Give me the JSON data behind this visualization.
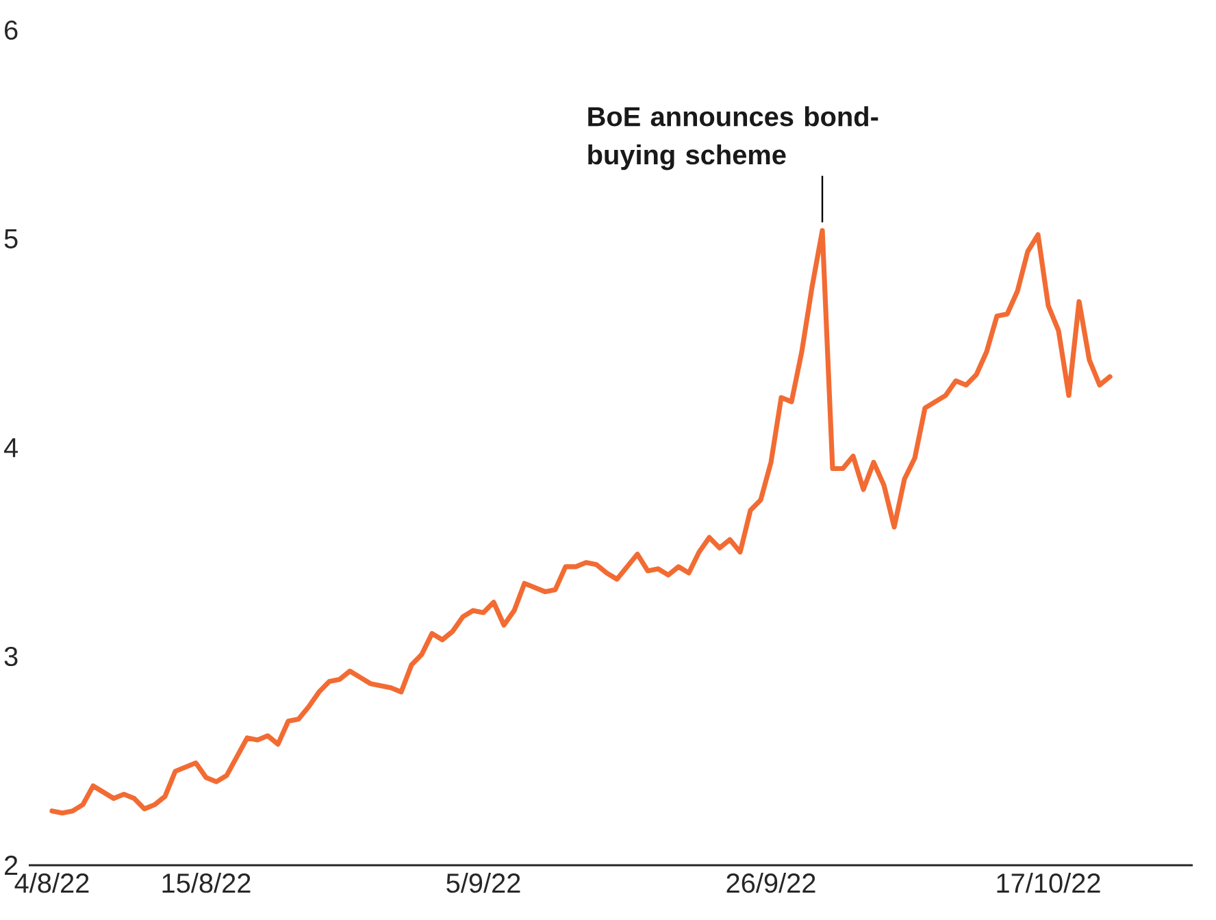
{
  "chart_data": {
    "type": "line",
    "categories": [
      "4/8/22",
      null,
      null,
      null,
      null,
      null,
      null,
      null,
      null,
      null,
      null,
      null,
      null,
      null,
      null,
      "15/8/22",
      null,
      null,
      null,
      null,
      null,
      null,
      null,
      null,
      null,
      null,
      null,
      null,
      null,
      null,
      null,
      null,
      null,
      null,
      null,
      null,
      null,
      null,
      null,
      null,
      null,
      null,
      "5/9/22",
      null,
      null,
      null,
      null,
      null,
      null,
      null,
      null,
      null,
      null,
      null,
      null,
      null,
      null,
      null,
      null,
      null,
      null,
      null,
      null,
      null,
      null,
      null,
      null,
      null,
      null,
      null,
      "26/9/22",
      null,
      null,
      null,
      null,
      null,
      null,
      null,
      null,
      null,
      null,
      null,
      null,
      null,
      null,
      null,
      null,
      null,
      null,
      null,
      null,
      null,
      null,
      null,
      null,
      null,
      null,
      "17/10/22",
      null,
      null,
      null,
      null,
      null,
      null
    ],
    "series": [
      {
        "color": "#f26b33",
        "values": [
          2.26,
          2.25,
          2.26,
          2.29,
          2.38,
          2.35,
          2.32,
          2.34,
          2.32,
          2.27,
          2.29,
          2.33,
          2.45,
          2.47,
          2.49,
          2.42,
          2.4,
          2.43,
          2.52,
          2.61,
          2.6,
          2.62,
          2.58,
          2.69,
          2.7,
          2.76,
          2.83,
          2.88,
          2.89,
          2.93,
          2.9,
          2.87,
          2.86,
          2.85,
          2.83,
          2.96,
          3.01,
          3.11,
          3.08,
          3.12,
          3.19,
          3.22,
          3.21,
          3.26,
          3.15,
          3.22,
          3.35,
          3.33,
          3.31,
          3.32,
          3.43,
          3.43,
          3.45,
          3.44,
          3.4,
          3.37,
          3.43,
          3.49,
          3.41,
          3.42,
          3.39,
          3.43,
          3.4,
          3.5,
          3.57,
          3.52,
          3.56,
          3.5,
          3.7,
          3.75,
          3.93,
          4.24,
          4.22,
          4.46,
          4.77,
          5.04,
          3.9,
          3.9,
          3.96,
          3.8,
          3.93,
          3.82,
          3.62,
          3.85,
          3.95,
          4.19,
          4.22,
          4.25,
          4.32,
          4.3,
          4.35,
          4.46,
          4.63,
          4.64,
          4.75,
          4.94,
          5.02,
          4.68,
          4.56,
          4.25,
          4.7,
          4.42,
          4.3,
          4.34
        ]
      }
    ],
    "ylim": [
      2,
      6
    ],
    "yticks": [
      2,
      3,
      4,
      5,
      6
    ],
    "annotations": [
      "BoE announces bond-buying scheme"
    ]
  }
}
